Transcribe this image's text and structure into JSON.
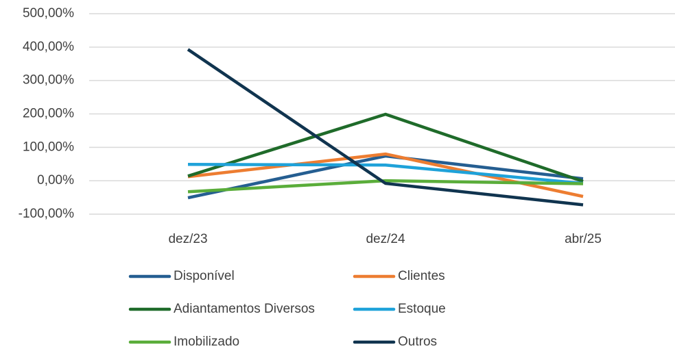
{
  "chart_data": {
    "type": "line",
    "categories": [
      "dez/23",
      "dez/24",
      "abr/25"
    ],
    "ylim": [
      -100,
      500
    ],
    "yticks": [
      {
        "value": -100,
        "label": "-100,00%"
      },
      {
        "value": 0,
        "label": "0,00%"
      },
      {
        "value": 100,
        "label": "100,00%"
      },
      {
        "value": 200,
        "label": "200,00%"
      },
      {
        "value": 300,
        "label": "300,00%"
      },
      {
        "value": 400,
        "label": "400,00%"
      },
      {
        "value": 500,
        "label": "500,00%"
      }
    ],
    "grid": true,
    "legend": "bottom",
    "series": [
      {
        "name": "Disponível",
        "color": "#255e91",
        "values": [
          -51,
          74,
          6
        ]
      },
      {
        "name": "Clientes",
        "color": "#ed7d31",
        "values": [
          12,
          80,
          -47
        ]
      },
      {
        "name": "Adiantamentos Diversos",
        "color": "#1f6b2a",
        "values": [
          14,
          199,
          -2
        ]
      },
      {
        "name": "Estoque",
        "color": "#1fa2d9",
        "values": [
          49,
          47,
          -8
        ]
      },
      {
        "name": "Imobilizado",
        "color": "#5aad3a",
        "values": [
          -33,
          0,
          -9
        ]
      },
      {
        "name": "Outros",
        "color": "#10344f",
        "values": [
          393,
          -8,
          -72
        ]
      }
    ]
  }
}
